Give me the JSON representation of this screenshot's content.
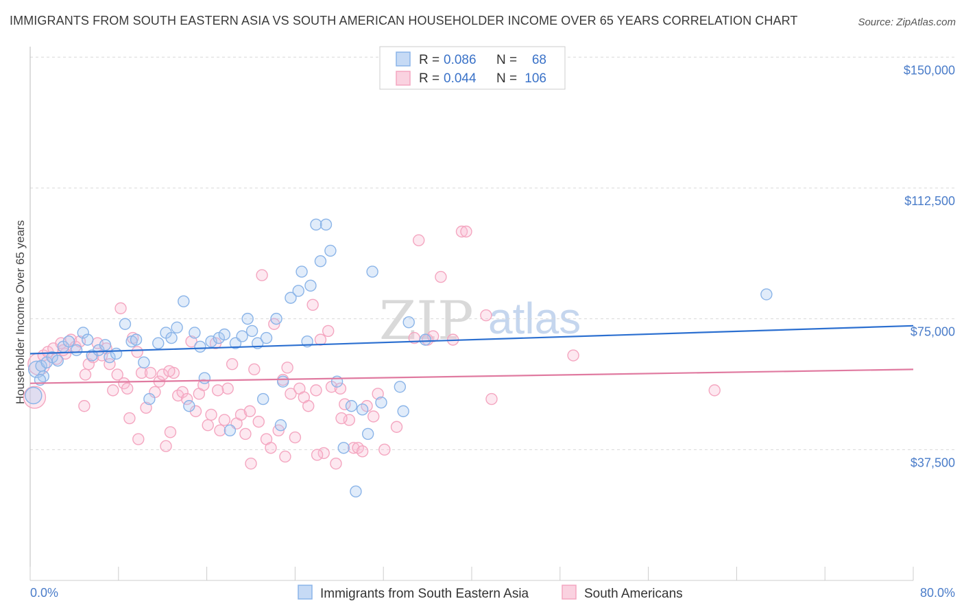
{
  "title": "IMMIGRANTS FROM SOUTH EASTERN ASIA VS SOUTH AMERICAN HOUSEHOLDER INCOME OVER 65 YEARS CORRELATION CHART",
  "source": "Source: ZipAtlas.com",
  "watermark": {
    "zip": "ZIP",
    "atlas": "atlas"
  },
  "legend_top": {
    "rows": [
      {
        "r_label": "R =",
        "r_value": "0.086",
        "n_label": "N =",
        "n_value": "68",
        "color": "#8ab4e8"
      },
      {
        "r_label": "R =",
        "r_value": "0.044",
        "n_label": "N =",
        "n_value": "106",
        "color": "#f4a6c0"
      }
    ]
  },
  "legend_bottom": {
    "items": [
      {
        "label": "Immigrants from South Eastern Asia",
        "color": "#8ab4e8"
      },
      {
        "label": "South Americans",
        "color": "#f4a6c0"
      }
    ]
  },
  "chart_data": {
    "type": "scatter",
    "title": "IMMIGRANTS FROM SOUTH EASTERN ASIA VS SOUTH AMERICAN HOUSEHOLDER INCOME OVER 65 YEARS CORRELATION CHART",
    "xlabel": "",
    "ylabel": "Householder Income Over 65 years",
    "xlim": [
      0,
      80
    ],
    "ylim": [
      0,
      153000
    ],
    "x_tick_labels": {
      "left": "0.0%",
      "right": "80.0%"
    },
    "y_ticks": [
      {
        "value": 37500,
        "label": "$37,500"
      },
      {
        "value": 75000,
        "label": "$75,000"
      },
      {
        "value": 112500,
        "label": "$112,500"
      },
      {
        "value": 150000,
        "label": "$150,000"
      }
    ],
    "grid": true,
    "legend": "top-center",
    "series": [
      {
        "name": "Immigrants from South Eastern Asia",
        "color": "#8ab4e8",
        "line_color": "#2b6fd0",
        "trend": [
          [
            0,
            65000
          ],
          [
            80,
            73000
          ]
        ],
        "points": [
          [
            0.3,
            53000
          ],
          [
            0.6,
            60500
          ],
          [
            1.0,
            61500
          ],
          [
            1.5,
            62500
          ],
          [
            2.0,
            64000
          ],
          [
            2.5,
            63000
          ],
          [
            3.0,
            67000
          ],
          [
            3.5,
            68500
          ],
          [
            4.2,
            66000
          ],
          [
            4.8,
            71000
          ],
          [
            5.2,
            69000
          ],
          [
            5.6,
            64500
          ],
          [
            6.2,
            66000
          ],
          [
            6.8,
            67500
          ],
          [
            7.2,
            64000
          ],
          [
            7.8,
            65000
          ],
          [
            8.6,
            73500
          ],
          [
            9.2,
            68500
          ],
          [
            9.6,
            69000
          ],
          [
            10.3,
            62500
          ],
          [
            10.8,
            52000
          ],
          [
            11.6,
            68000
          ],
          [
            12.3,
            71000
          ],
          [
            12.8,
            69500
          ],
          [
            13.3,
            72500
          ],
          [
            13.9,
            80000
          ],
          [
            14.4,
            50000
          ],
          [
            14.9,
            71000
          ],
          [
            15.4,
            67000
          ],
          [
            15.8,
            58000
          ],
          [
            16.4,
            68500
          ],
          [
            17.1,
            69500
          ],
          [
            17.6,
            70500
          ],
          [
            18.1,
            43000
          ],
          [
            18.6,
            68000
          ],
          [
            19.2,
            70000
          ],
          [
            19.7,
            75000
          ],
          [
            20.1,
            71500
          ],
          [
            20.6,
            68000
          ],
          [
            21.1,
            52000
          ],
          [
            21.4,
            69500
          ],
          [
            22.3,
            75000
          ],
          [
            22.7,
            44500
          ],
          [
            22.9,
            57000
          ],
          [
            23.6,
            81000
          ],
          [
            24.3,
            83000
          ],
          [
            24.6,
            88500
          ],
          [
            25.1,
            68500
          ],
          [
            25.4,
            84500
          ],
          [
            25.9,
            102000
          ],
          [
            26.3,
            91500
          ],
          [
            26.8,
            102000
          ],
          [
            27.2,
            94500
          ],
          [
            27.8,
            57000
          ],
          [
            28.4,
            38000
          ],
          [
            29.1,
            50000
          ],
          [
            29.5,
            25500
          ],
          [
            30.1,
            49000
          ],
          [
            30.6,
            42000
          ],
          [
            31.0,
            88500
          ],
          [
            31.8,
            51000
          ],
          [
            33.5,
            55500
          ],
          [
            33.8,
            48500
          ],
          [
            34.3,
            74000
          ],
          [
            35.8,
            69000
          ],
          [
            66.7,
            82000
          ],
          [
            1.2,
            58500
          ],
          [
            0.9,
            57500
          ]
        ]
      },
      {
        "name": "South Americans",
        "color": "#f4a6c0",
        "line_color": "#e07aa0",
        "trend": [
          [
            0,
            56500
          ],
          [
            80,
            60500
          ]
        ],
        "points": [
          [
            0.4,
            52500
          ],
          [
            0.8,
            62000
          ],
          [
            1.2,
            64500
          ],
          [
            1.6,
            65500
          ],
          [
            2.1,
            66500
          ],
          [
            2.4,
            63500
          ],
          [
            2.8,
            68000
          ],
          [
            3.2,
            65000
          ],
          [
            3.7,
            69000
          ],
          [
            4.1,
            67000
          ],
          [
            4.5,
            68500
          ],
          [
            4.9,
            50000
          ],
          [
            5.3,
            62000
          ],
          [
            5.7,
            64000
          ],
          [
            6.1,
            68000
          ],
          [
            6.5,
            64500
          ],
          [
            6.9,
            66500
          ],
          [
            7.2,
            62000
          ],
          [
            7.5,
            54500
          ],
          [
            7.9,
            59000
          ],
          [
            8.2,
            78000
          ],
          [
            8.5,
            56500
          ],
          [
            8.8,
            55000
          ],
          [
            9.0,
            46500
          ],
          [
            9.3,
            69500
          ],
          [
            9.7,
            65500
          ],
          [
            10.1,
            59500
          ],
          [
            10.5,
            49500
          ],
          [
            10.9,
            59500
          ],
          [
            11.3,
            54000
          ],
          [
            11.7,
            57000
          ],
          [
            12.0,
            59000
          ],
          [
            12.3,
            38500
          ],
          [
            12.7,
            42500
          ],
          [
            13.0,
            59500
          ],
          [
            13.4,
            53000
          ],
          [
            13.8,
            54000
          ],
          [
            14.2,
            52000
          ],
          [
            14.6,
            68500
          ],
          [
            15.0,
            48500
          ],
          [
            15.3,
            53500
          ],
          [
            15.7,
            56000
          ],
          [
            16.1,
            44500
          ],
          [
            16.4,
            47500
          ],
          [
            16.8,
            68000
          ],
          [
            17.2,
            43000
          ],
          [
            17.6,
            46000
          ],
          [
            17.9,
            55000
          ],
          [
            18.3,
            62000
          ],
          [
            18.7,
            45000
          ],
          [
            19.1,
            47500
          ],
          [
            19.5,
            42000
          ],
          [
            19.9,
            48500
          ],
          [
            20.3,
            60500
          ],
          [
            20.7,
            45500
          ],
          [
            21.0,
            87500
          ],
          [
            21.4,
            40500
          ],
          [
            21.8,
            38000
          ],
          [
            22.1,
            73500
          ],
          [
            22.5,
            43000
          ],
          [
            22.9,
            57500
          ],
          [
            23.3,
            61000
          ],
          [
            23.6,
            53500
          ],
          [
            24.0,
            41000
          ],
          [
            24.4,
            55000
          ],
          [
            24.8,
            52500
          ],
          [
            25.2,
            50000
          ],
          [
            25.6,
            79000
          ],
          [
            25.9,
            54500
          ],
          [
            26.3,
            69000
          ],
          [
            26.6,
            36500
          ],
          [
            27.0,
            71500
          ],
          [
            27.3,
            55500
          ],
          [
            27.7,
            33500
          ],
          [
            28.1,
            55000
          ],
          [
            28.5,
            50500
          ],
          [
            28.9,
            46000
          ],
          [
            29.3,
            38000
          ],
          [
            29.7,
            38000
          ],
          [
            30.1,
            37000
          ],
          [
            30.5,
            50000
          ],
          [
            31.1,
            47000
          ],
          [
            31.5,
            53500
          ],
          [
            35.2,
            97500
          ],
          [
            36.0,
            69000
          ],
          [
            37.2,
            87000
          ],
          [
            38.3,
            69000
          ],
          [
            39.1,
            100000
          ],
          [
            41.3,
            76000
          ],
          [
            41.8,
            52000
          ],
          [
            49.2,
            64500
          ],
          [
            62.0,
            54500
          ],
          [
            32.1,
            37500
          ],
          [
            33.2,
            44000
          ],
          [
            34.8,
            69500
          ],
          [
            36.5,
            70000
          ],
          [
            3.0,
            66000
          ],
          [
            5.0,
            59000
          ],
          [
            9.8,
            40500
          ],
          [
            17.0,
            54500
          ],
          [
            26.0,
            36000
          ],
          [
            28.2,
            46500
          ],
          [
            39.5,
            100000
          ],
          [
            12.6,
            60000
          ],
          [
            20.0,
            33500
          ],
          [
            23.1,
            35500
          ]
        ]
      }
    ]
  }
}
